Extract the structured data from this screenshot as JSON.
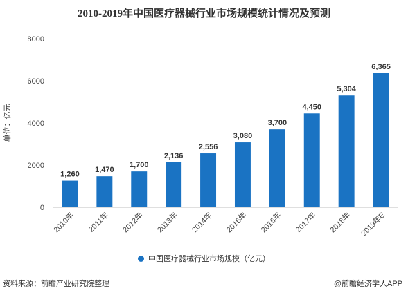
{
  "chart_data": {
    "type": "bar",
    "title": "2010-2019年中国医疗器械行业市场规模统计情况及预测",
    "ylabel": "单位：亿元",
    "xlabel": "",
    "categories": [
      "2010年",
      "2011年",
      "2012年",
      "2013年",
      "2014年",
      "2015年",
      "2016年",
      "2017年",
      "2018年",
      "2019年E"
    ],
    "series": [
      {
        "name": "中国医疗器械行业市场规模（亿元）",
        "values": [
          1260,
          1470,
          1700,
          2136,
          2556,
          3080,
          3700,
          4450,
          5304,
          6365
        ],
        "labels": [
          "1,260",
          "1,470",
          "1,700",
          "2,136",
          "2,556",
          "3,080",
          "3,700",
          "4,450",
          "5,304",
          "6,365"
        ]
      }
    ],
    "ylim": [
      0,
      8000
    ],
    "yticks": [
      0,
      2000,
      4000,
      6000,
      8000
    ],
    "grid": false,
    "legend_position": "bottom",
    "bar_color": "#1a73c3"
  },
  "footer": {
    "source": "资料来源：前瞻产业研究院整理",
    "credit": "@前瞻经济学人APP"
  }
}
